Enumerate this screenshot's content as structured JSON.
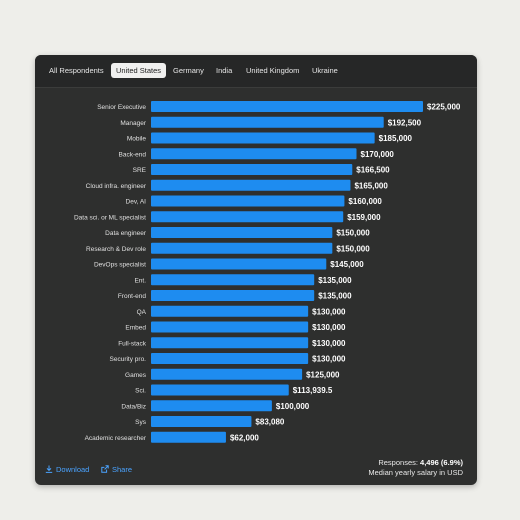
{
  "tabs": [
    {
      "label": "All Respondents",
      "active": false
    },
    {
      "label": "United States",
      "active": true
    },
    {
      "label": "Germany",
      "active": false
    },
    {
      "label": "India",
      "active": false
    },
    {
      "label": "United Kingdom",
      "active": false
    },
    {
      "label": "Ukraine",
      "active": false
    }
  ],
  "footer": {
    "download_label": "Download",
    "share_label": "Share",
    "responses_prefix": "Responses:",
    "responses_value": "4,496 (6.9%)",
    "caption": "Median yearly salary in USD"
  },
  "colors": {
    "bar": "#1e8cf0",
    "card_background": "#2e2f2e",
    "link": "#4aa3ff"
  },
  "chart_data": {
    "type": "bar",
    "orientation": "horizontal",
    "categories": [
      "Senior Executive",
      "Manager",
      "Mobile",
      "Back-end",
      "SRE",
      "Cloud infra. engineer",
      "Dev, AI",
      "Data sci. or ML specialist",
      "Data engineer",
      "Research & Dev role",
      "DevOps specialist",
      "Ent.",
      "Front-end",
      "QA",
      "Embed",
      "Full-stack",
      "Security pro.",
      "Games",
      "Sci.",
      "Data/Biz",
      "Sys",
      "Academic researcher"
    ],
    "values": [
      225000,
      192500,
      185000,
      170000,
      166500,
      165000,
      160000,
      159000,
      150000,
      150000,
      145000,
      135000,
      135000,
      130000,
      130000,
      130000,
      130000,
      125000,
      113939.5,
      100000,
      83080,
      62000
    ],
    "value_labels": [
      "$225,000",
      "$192,500",
      "$185,000",
      "$170,000",
      "$166,500",
      "$165,000",
      "$160,000",
      "$159,000",
      "$150,000",
      "$150,000",
      "$145,000",
      "$135,000",
      "$135,000",
      "$130,000",
      "$130,000",
      "$130,000",
      "$130,000",
      "$125,000",
      "$113,939.5",
      "$100,000",
      "$83,080",
      "$62,000"
    ],
    "xlim": [
      0,
      225000
    ],
    "grid": false,
    "legend": "none"
  }
}
